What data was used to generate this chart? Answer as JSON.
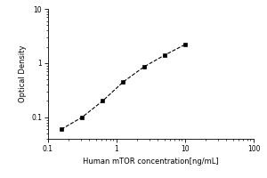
{
  "x": [
    0.156,
    0.313,
    0.625,
    1.25,
    2.5,
    5.0,
    10.0
  ],
  "y": [
    0.06,
    0.1,
    0.2,
    0.45,
    0.85,
    1.4,
    2.2
  ],
  "xlabel": "Human mTOR concentration[ng/mL]",
  "ylabel": "Optical Density",
  "xlim": [
    0.1,
    100
  ],
  "ylim": [
    0.04,
    10
  ],
  "yticks": [
    0.1,
    1,
    10
  ],
  "xticks": [
    0.1,
    1,
    10,
    100
  ],
  "marker": "s",
  "marker_color": "black",
  "marker_size": 3,
  "line_style": "--",
  "line_color": "black",
  "line_width": 0.8,
  "xlabel_fontsize": 6,
  "ylabel_fontsize": 6,
  "tick_fontsize": 5.5,
  "background_color": "#ffffff"
}
